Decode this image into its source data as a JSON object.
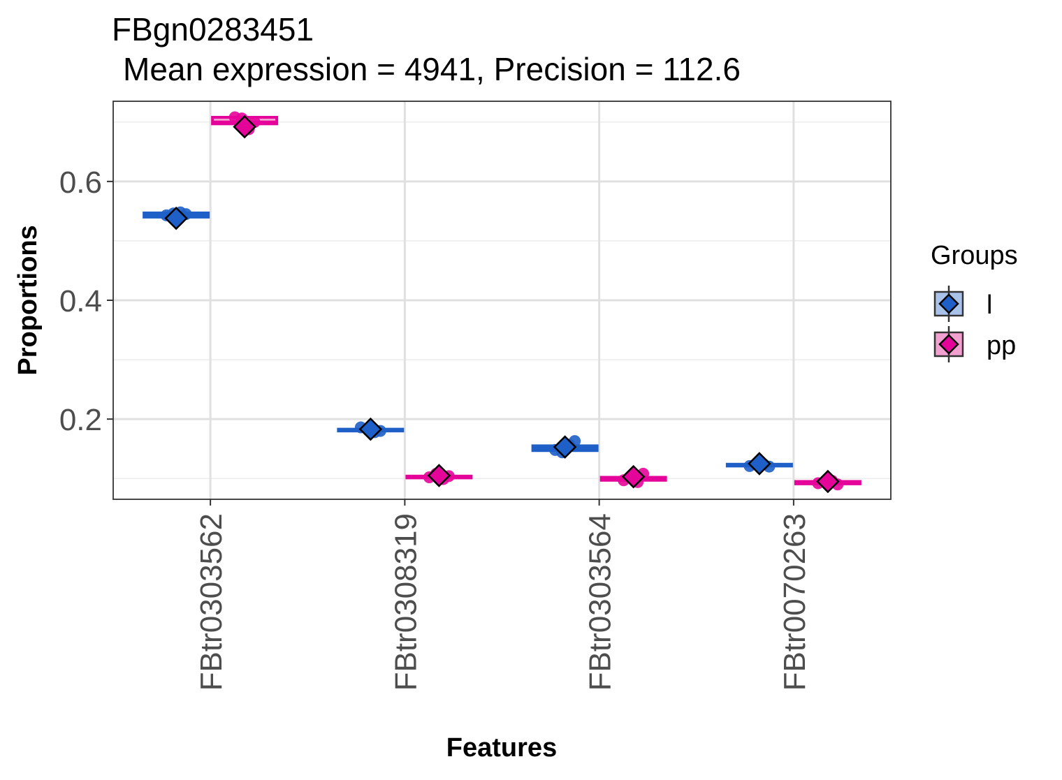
{
  "chart_data": {
    "type": "boxplot",
    "title": "FBgn0283451",
    "subtitle": "Mean expression = 4941, Precision = 112.6",
    "xlabel": "Features",
    "ylabel": "Proportions",
    "ylim": [
      0.065,
      0.735
    ],
    "y_ticks": [
      0.2,
      0.4,
      0.6
    ],
    "y_tick_labels": [
      "0.2",
      "0.4",
      "0.6"
    ],
    "y_minor_ticks": [
      0.1,
      0.3,
      0.5,
      0.7
    ],
    "grid": true,
    "categories": [
      "FBtr0303562",
      "FBtr0308319",
      "FBtr0303564",
      "FBtr0070263"
    ],
    "legend": {
      "title": "Groups",
      "position": "right",
      "entries": [
        {
          "label": "l",
          "color": "#1f5fc8",
          "fill": "#a9c2ea"
        },
        {
          "label": "pp",
          "color": "#e5049a",
          "fill": "#f2a0cf"
        }
      ]
    },
    "series": [
      {
        "name": "l",
        "color": "#1f5fc8",
        "box_fill": "#a9c2ea",
        "boxes": [
          {
            "q1": 0.54,
            "median": 0.543,
            "q3": 0.547
          },
          {
            "q1": 0.18,
            "median": 0.181,
            "q3": 0.183
          },
          {
            "q1": 0.147,
            "median": 0.151,
            "q3": 0.155
          },
          {
            "q1": 0.121,
            "median": 0.122,
            "q3": 0.124
          }
        ],
        "points": [
          [
            0.543,
            0.546,
            0.548,
            0.545
          ],
          [
            0.186,
            0.183,
            0.178,
            0.18
          ],
          [
            0.148,
            0.144,
            0.157,
            0.163
          ],
          [
            0.121,
            0.123,
            0.124,
            0.12
          ]
        ],
        "means": [
          0.538,
          0.183,
          0.153,
          0.125
        ]
      },
      {
        "name": "pp",
        "color": "#e5049a",
        "box_fill": "#f2a0cf",
        "boxes": [
          {
            "q1": 0.697,
            "median": 0.7,
            "q3": 0.708
          },
          {
            "q1": 0.101,
            "median": 0.102,
            "q3": 0.104
          },
          {
            "q1": 0.097,
            "median": 0.1,
            "q3": 0.102
          },
          {
            "q1": 0.091,
            "median": 0.093,
            "q3": 0.095
          }
        ],
        "points": [
          [
            0.708,
            0.706,
            0.688,
            0.7
          ],
          [
            0.102,
            0.108,
            0.099,
            0.104
          ],
          [
            0.097,
            0.102,
            0.094,
            0.108
          ],
          [
            0.092,
            0.094,
            0.096,
            0.09
          ]
        ],
        "means": [
          0.692,
          0.105,
          0.103,
          0.095
        ]
      }
    ]
  }
}
